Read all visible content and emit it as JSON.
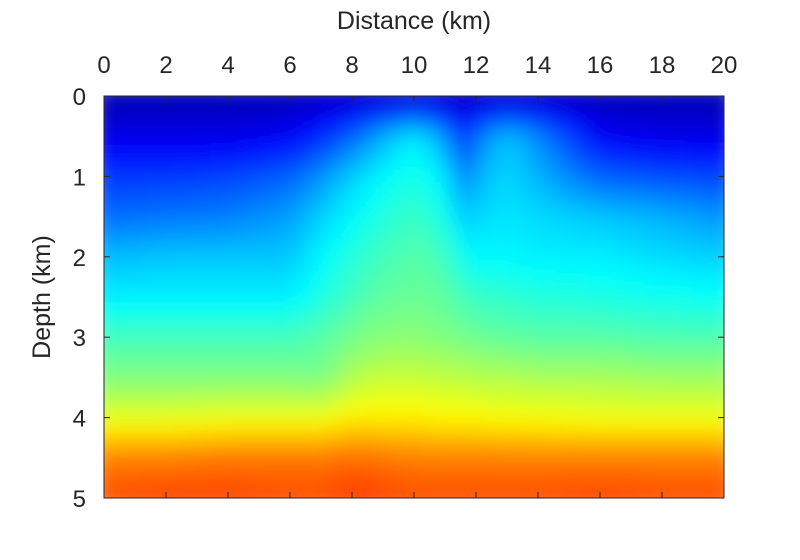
{
  "chart_data": {
    "type": "heatmap",
    "xlabel": "Distance (km)",
    "ylabel": "Depth (km)",
    "xlim": [
      0,
      20
    ],
    "ylim": [
      5,
      0
    ],
    "x_axis_position": "top",
    "x_ticks": [
      0,
      2,
      4,
      6,
      8,
      10,
      12,
      14,
      16,
      18,
      20
    ],
    "y_ticks": [
      0,
      1,
      2,
      3,
      4,
      5
    ],
    "colormap": "jet",
    "colorbar": false,
    "grid": false,
    "field": {
      "x": [
        0,
        2,
        4,
        6,
        7,
        8,
        9,
        10,
        11,
        11.6,
        12,
        13,
        14,
        16,
        18,
        20
      ],
      "y": [
        0,
        0.5,
        1,
        1.5,
        2,
        2.5,
        3,
        3.5,
        4,
        4.5,
        5
      ],
      "z": [
        [
          0.05,
          0.05,
          0.05,
          0.05,
          0.06,
          0.06,
          0.06,
          0.07,
          0.06,
          0.06,
          0.06,
          0.06,
          0.06,
          0.05,
          0.05,
          0.05
        ],
        [
          0.1,
          0.1,
          0.1,
          0.12,
          0.16,
          0.22,
          0.3,
          0.36,
          0.28,
          0.14,
          0.24,
          0.32,
          0.26,
          0.12,
          0.1,
          0.1
        ],
        [
          0.18,
          0.18,
          0.19,
          0.22,
          0.27,
          0.33,
          0.37,
          0.4,
          0.36,
          0.23,
          0.3,
          0.34,
          0.3,
          0.22,
          0.2,
          0.19
        ],
        [
          0.23,
          0.24,
          0.25,
          0.28,
          0.33,
          0.37,
          0.41,
          0.43,
          0.4,
          0.31,
          0.34,
          0.35,
          0.34,
          0.32,
          0.3,
          0.27
        ],
        [
          0.31,
          0.32,
          0.32,
          0.32,
          0.37,
          0.41,
          0.44,
          0.46,
          0.44,
          0.38,
          0.37,
          0.37,
          0.36,
          0.36,
          0.34,
          0.33
        ],
        [
          0.36,
          0.36,
          0.36,
          0.36,
          0.4,
          0.44,
          0.47,
          0.48,
          0.47,
          0.44,
          0.43,
          0.42,
          0.41,
          0.4,
          0.39,
          0.38
        ],
        [
          0.44,
          0.44,
          0.44,
          0.44,
          0.46,
          0.49,
          0.51,
          0.51,
          0.5,
          0.49,
          0.48,
          0.47,
          0.46,
          0.46,
          0.45,
          0.45
        ],
        [
          0.5,
          0.5,
          0.5,
          0.5,
          0.49,
          0.55,
          0.57,
          0.57,
          0.56,
          0.56,
          0.55,
          0.55,
          0.54,
          0.54,
          0.53,
          0.53
        ],
        [
          0.6,
          0.6,
          0.61,
          0.61,
          0.61,
          0.64,
          0.64,
          0.64,
          0.63,
          0.63,
          0.63,
          0.62,
          0.62,
          0.61,
          0.61,
          0.61
        ],
        [
          0.75,
          0.75,
          0.76,
          0.76,
          0.76,
          0.77,
          0.76,
          0.75,
          0.75,
          0.75,
          0.75,
          0.75,
          0.75,
          0.75,
          0.75,
          0.75
        ],
        [
          0.8,
          0.81,
          0.81,
          0.8,
          0.8,
          0.82,
          0.81,
          0.8,
          0.8,
          0.8,
          0.8,
          0.8,
          0.8,
          0.81,
          0.8,
          0.8
        ]
      ]
    }
  }
}
